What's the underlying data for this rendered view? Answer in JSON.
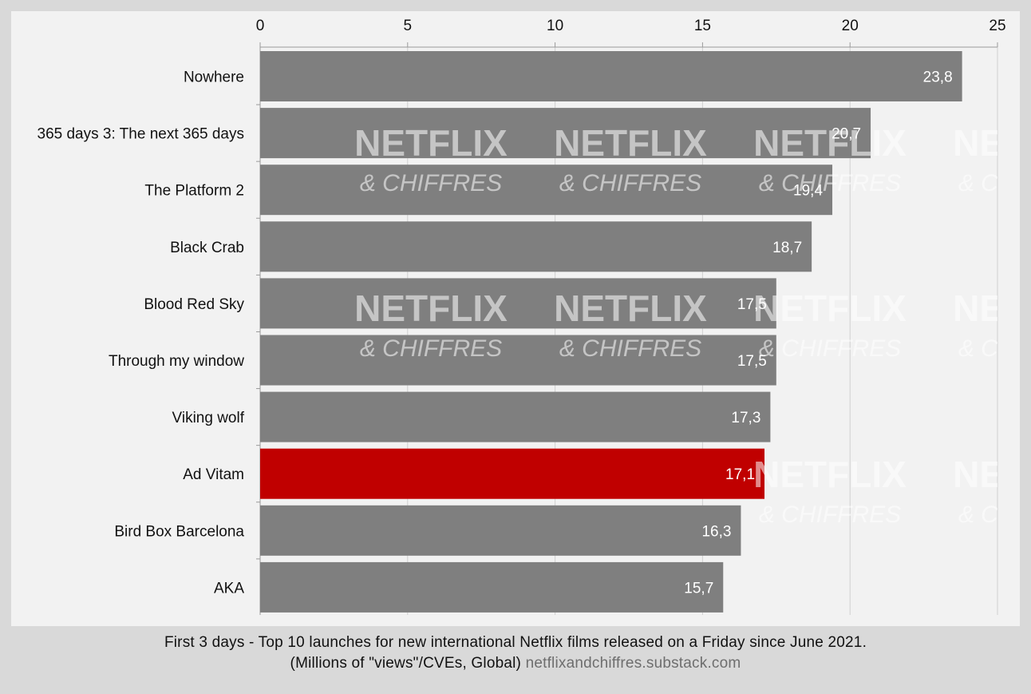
{
  "chart_data": {
    "type": "bar",
    "orientation": "horizontal",
    "categories": [
      "Nowhere",
      "365 days 3: The next 365 days",
      "The Platform 2",
      "Black Crab",
      "Blood Red Sky",
      "Through my window",
      "Viking wolf",
      "Ad Vitam",
      "Bird Box Barcelona",
      "AKA"
    ],
    "values": [
      23.8,
      20.7,
      19.4,
      18.7,
      17.5,
      17.5,
      17.3,
      17.1,
      16.3,
      15.7
    ],
    "value_labels": [
      "23,8",
      "20,7",
      "19,4",
      "18,7",
      "17,5",
      "17,5",
      "17,3",
      "17,1",
      "16,3",
      "15,7"
    ],
    "highlight_index": 7,
    "xlim": [
      0,
      25
    ],
    "xticks": [
      0,
      5,
      10,
      15,
      20,
      25
    ],
    "x_axis_position": "top",
    "grid": true,
    "colors": {
      "bar": "#7f7f7f",
      "highlight": "#c00000",
      "plot_background": "#f2f2f2",
      "page_background": "#d9d9d9",
      "grid": "#d0d0d0",
      "value_label": "#ffffff",
      "watermark": "#ffffff"
    },
    "watermark": [
      "NETFLIX",
      "& CHIFFRES"
    ]
  },
  "caption": {
    "line1": "First 3 days - Top 10 launches for new international Netflix films released on a Friday since June 2021.",
    "line2": "(Millions of \"views\"/CVEs, Global)",
    "source": "netflixandchiffres.substack.com"
  }
}
